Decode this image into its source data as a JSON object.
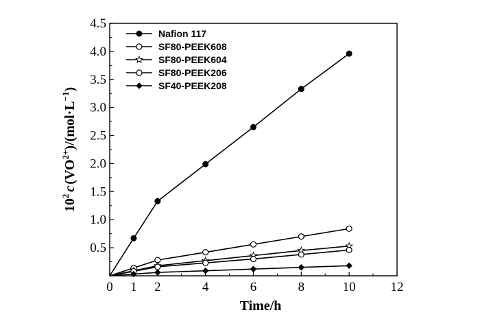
{
  "chart_data": {
    "type": "line",
    "xlabel": "Time/h",
    "ylabel": {
      "prefix": "10",
      "prefix_sup": "2",
      "var": "c",
      "paren_open": "(VO",
      "ion_sup": "2+",
      "paren_close": ")/(mol·L",
      "unit_sup": "−1",
      "end": ")"
    },
    "xlim": [
      0,
      12
    ],
    "ylim": [
      0,
      4.5
    ],
    "xticks": [
      0,
      2,
      4,
      6,
      8,
      10,
      12
    ],
    "x_minor_ticks": [
      1,
      3,
      5,
      7,
      9,
      11
    ],
    "x_tick_labels": [
      "0",
      "1",
      "2",
      "4",
      "6",
      "8",
      "10",
      "12"
    ],
    "x_tick_label_values": [
      0,
      1,
      2,
      4,
      6,
      8,
      10,
      12
    ],
    "yticks": [
      0.5,
      1.0,
      1.5,
      2.0,
      2.5,
      3.0,
      3.5,
      4.0,
      4.5
    ],
    "y_tick_labels": [
      "0.5",
      "1.0",
      "1.5",
      "2.0",
      "2.5",
      "3.0",
      "3.5",
      "4.0",
      "4.5"
    ],
    "grid": false,
    "legend_position": "top-left",
    "x": [
      0,
      1,
      2,
      4,
      6,
      8,
      10
    ],
    "series": [
      {
        "name": "Nafion 117",
        "marker": "filled-circle",
        "values": [
          0,
          0.67,
          1.33,
          1.99,
          2.65,
          3.33,
          3.96
        ]
      },
      {
        "name": "SF80-PEEK608",
        "marker": "open-circle",
        "values": [
          0,
          0.14,
          0.28,
          0.42,
          0.56,
          0.7,
          0.84
        ]
      },
      {
        "name": "SF80-PEEK604",
        "marker": "open-star",
        "values": [
          0,
          0.09,
          0.18,
          0.27,
          0.36,
          0.45,
          0.53
        ]
      },
      {
        "name": "SF80-PEEK206",
        "marker": "open-circle",
        "values": [
          0,
          0.08,
          0.16,
          0.23,
          0.3,
          0.38,
          0.46
        ]
      },
      {
        "name": "SF40-PEEK208",
        "marker": "filled-diamond",
        "values": [
          0,
          0.03,
          0.06,
          0.09,
          0.12,
          0.15,
          0.18
        ]
      }
    ]
  }
}
